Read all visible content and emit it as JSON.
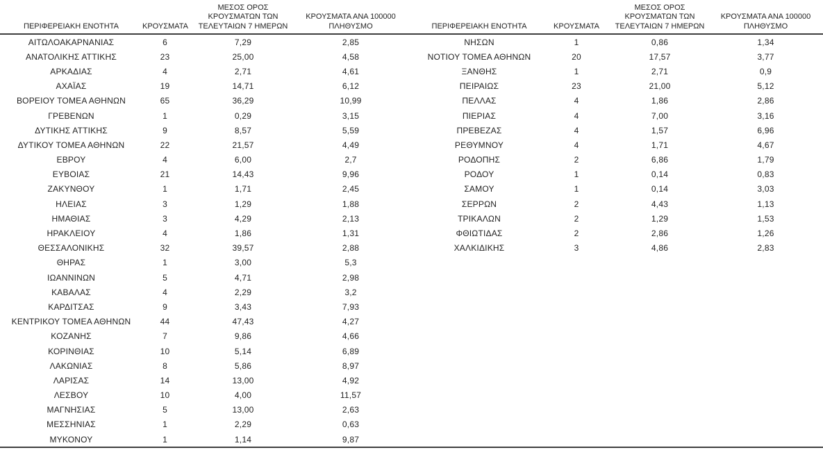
{
  "headers": {
    "region": "ΠΕΡΙΦΕΡΕΙΑΚΗ ΕΝΟΤΗΤΑ",
    "cases": "ΚΡΟΥΣΜΑΤΑ",
    "avg7": "ΜΕΣΟΣ ΟΡΟΣ\nΚΡΟΥΣΜΑΤΩΝ ΤΩΝ\nΤΕΛΕΥΤΑΙΩΝ 7 ΗΜΕΡΩΝ",
    "per100k": "ΚΡΟΥΣΜΑΤΑ ΑΝΑ 100000\nΠΛΗΘΥΣΜΟ"
  },
  "left_table": {
    "rows": [
      {
        "region": "ΑΙΤΩΛΟΑΚΑΡΝΑΝΙΑΣ",
        "cases": "6",
        "avg7": "7,29",
        "per100k": "2,85"
      },
      {
        "region": "ΑΝΑΤΟΛΙΚΗΣ ΑΤΤΙΚΗΣ",
        "cases": "23",
        "avg7": "25,00",
        "per100k": "4,58"
      },
      {
        "region": "ΑΡΚΑΔΙΑΣ",
        "cases": "4",
        "avg7": "2,71",
        "per100k": "4,61"
      },
      {
        "region": "ΑΧΑΪΑΣ",
        "cases": "19",
        "avg7": "14,71",
        "per100k": "6,12"
      },
      {
        "region": "ΒΟΡΕΙΟΥ ΤΟΜΕΑ ΑΘΗΝΩΝ",
        "cases": "65",
        "avg7": "36,29",
        "per100k": "10,99"
      },
      {
        "region": "ΓΡΕΒΕΝΩΝ",
        "cases": "1",
        "avg7": "0,29",
        "per100k": "3,15"
      },
      {
        "region": "ΔΥΤΙΚΗΣ ΑΤΤΙΚΗΣ",
        "cases": "9",
        "avg7": "8,57",
        "per100k": "5,59"
      },
      {
        "region": "ΔΥΤΙΚΟΥ ΤΟΜΕΑ ΑΘΗΝΩΝ",
        "cases": "22",
        "avg7": "21,57",
        "per100k": "4,49"
      },
      {
        "region": "ΕΒΡΟΥ",
        "cases": "4",
        "avg7": "6,00",
        "per100k": "2,7"
      },
      {
        "region": "ΕΥΒΟΙΑΣ",
        "cases": "21",
        "avg7": "14,43",
        "per100k": "9,96"
      },
      {
        "region": "ΖΑΚΥΝΘΟΥ",
        "cases": "1",
        "avg7": "1,71",
        "per100k": "2,45"
      },
      {
        "region": "ΗΛΕΙΑΣ",
        "cases": "3",
        "avg7": "1,29",
        "per100k": "1,88"
      },
      {
        "region": "ΗΜΑΘΙΑΣ",
        "cases": "3",
        "avg7": "4,29",
        "per100k": "2,13"
      },
      {
        "region": "ΗΡΑΚΛΕΙΟΥ",
        "cases": "4",
        "avg7": "1,86",
        "per100k": "1,31"
      },
      {
        "region": "ΘΕΣΣΑΛΟΝΙΚΗΣ",
        "cases": "32",
        "avg7": "39,57",
        "per100k": "2,88"
      },
      {
        "region": "ΘΗΡΑΣ",
        "cases": "1",
        "avg7": "3,00",
        "per100k": "5,3"
      },
      {
        "region": "ΙΩΑΝΝΙΝΩΝ",
        "cases": "5",
        "avg7": "4,71",
        "per100k": "2,98"
      },
      {
        "region": "ΚΑΒΑΛΑΣ",
        "cases": "4",
        "avg7": "2,29",
        "per100k": "3,2"
      },
      {
        "region": "ΚΑΡΔΙΤΣΑΣ",
        "cases": "9",
        "avg7": "3,43",
        "per100k": "7,93"
      },
      {
        "region": "ΚΕΝΤΡΙΚΟΥ ΤΟΜΕΑ ΑΘΗΝΩΝ",
        "cases": "44",
        "avg7": "47,43",
        "per100k": "4,27"
      },
      {
        "region": "ΚΟΖΑΝΗΣ",
        "cases": "7",
        "avg7": "9,86",
        "per100k": "4,66"
      },
      {
        "region": "ΚΟΡΙΝΘΙΑΣ",
        "cases": "10",
        "avg7": "5,14",
        "per100k": "6,89"
      },
      {
        "region": "ΛΑΚΩΝΙΑΣ",
        "cases": "8",
        "avg7": "5,86",
        "per100k": "8,97"
      },
      {
        "region": "ΛΑΡΙΣΑΣ",
        "cases": "14",
        "avg7": "13,00",
        "per100k": "4,92"
      },
      {
        "region": "ΛΕΣΒΟΥ",
        "cases": "10",
        "avg7": "4,00",
        "per100k": "11,57"
      },
      {
        "region": "ΜΑΓΝΗΣΙΑΣ",
        "cases": "5",
        "avg7": "13,00",
        "per100k": "2,63"
      },
      {
        "region": "ΜΕΣΣΗΝΙΑΣ",
        "cases": "1",
        "avg7": "2,29",
        "per100k": "0,63"
      },
      {
        "region": "ΜΥΚΟΝΟΥ",
        "cases": "1",
        "avg7": "1,14",
        "per100k": "9,87"
      }
    ]
  },
  "right_table": {
    "rows": [
      {
        "region": "ΝΗΣΩΝ",
        "cases": "1",
        "avg7": "0,86",
        "per100k": "1,34"
      },
      {
        "region": "ΝΟΤΙΟΥ ΤΟΜΕΑ ΑΘΗΝΩΝ",
        "cases": "20",
        "avg7": "17,57",
        "per100k": "3,77"
      },
      {
        "region": "ΞΑΝΘΗΣ",
        "cases": "1",
        "avg7": "2,71",
        "per100k": "0,9"
      },
      {
        "region": "ΠΕΙΡΑΙΩΣ",
        "cases": "23",
        "avg7": "21,00",
        "per100k": "5,12"
      },
      {
        "region": "ΠΕΛΛΑΣ",
        "cases": "4",
        "avg7": "1,86",
        "per100k": "2,86"
      },
      {
        "region": "ΠΙΕΡΙΑΣ",
        "cases": "4",
        "avg7": "7,00",
        "per100k": "3,16"
      },
      {
        "region": "ΠΡΕΒΕΖΑΣ",
        "cases": "4",
        "avg7": "1,57",
        "per100k": "6,96"
      },
      {
        "region": "ΡΕΘΥΜΝΟΥ",
        "cases": "4",
        "avg7": "1,71",
        "per100k": "4,67"
      },
      {
        "region": "ΡΟΔΟΠΗΣ",
        "cases": "2",
        "avg7": "6,86",
        "per100k": "1,79"
      },
      {
        "region": "ΡΟΔΟΥ",
        "cases": "1",
        "avg7": "0,14",
        "per100k": "0,83"
      },
      {
        "region": "ΣΑΜΟΥ",
        "cases": "1",
        "avg7": "0,14",
        "per100k": "3,03"
      },
      {
        "region": "ΣΕΡΡΩΝ",
        "cases": "2",
        "avg7": "4,43",
        "per100k": "1,13"
      },
      {
        "region": "ΤΡΙΚΑΛΩΝ",
        "cases": "2",
        "avg7": "1,29",
        "per100k": "1,53"
      },
      {
        "region": "ΦΘΙΩΤΙΔΑΣ",
        "cases": "2",
        "avg7": "2,86",
        "per100k": "1,26"
      },
      {
        "region": "ΧΑΛΚΙΔΙΚΗΣ",
        "cases": "3",
        "avg7": "4,86",
        "per100k": "2,83"
      }
    ]
  },
  "style": {
    "rule_color": "#3d3d3d",
    "text_color": "#1f1f1f",
    "background": "#ffffff"
  }
}
